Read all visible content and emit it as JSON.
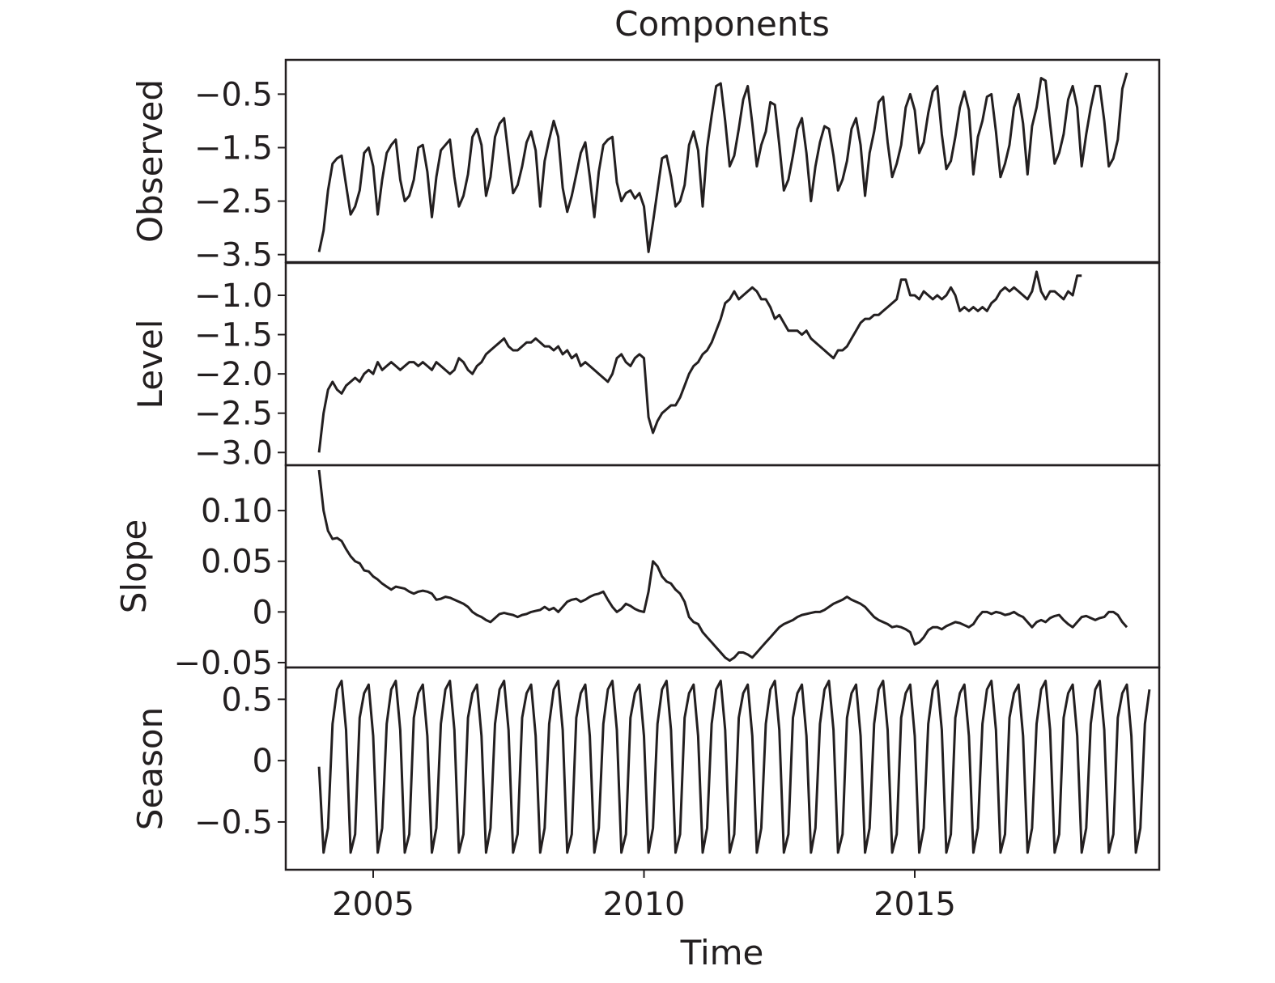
{
  "chart_data": {
    "type": "line",
    "title": "Components",
    "xlabel": "Time",
    "xlim": [
      2004.0,
      2020.0
    ],
    "xticks": [
      2005,
      2010,
      2015
    ],
    "xtick_labels": [
      "2005",
      "2010",
      "2015"
    ],
    "x_start": 2004.0,
    "x_step": 0.08333,
    "panels": [
      {
        "name": "Observed",
        "ylim": [
          -3.55,
          0.05
        ],
        "yticks": [
          -0.5,
          -1.5,
          -2.5,
          -3.5
        ],
        "ytick_labels": [
          "−0.5",
          "−1.5",
          "−2.5",
          "−3.5"
        ],
        "values": [
          -3.45,
          -3.05,
          -2.3,
          -1.8,
          -1.7,
          -1.65,
          -2.2,
          -2.75,
          -2.6,
          -2.3,
          -1.6,
          -1.5,
          -1.85,
          -2.75,
          -2.1,
          -1.6,
          -1.45,
          -1.35,
          -2.1,
          -2.5,
          -2.4,
          -2.1,
          -1.5,
          -1.45,
          -1.95,
          -2.8,
          -2.05,
          -1.55,
          -1.45,
          -1.35,
          -2.05,
          -2.6,
          -2.4,
          -2.0,
          -1.3,
          -1.15,
          -1.45,
          -2.4,
          -2.05,
          -1.3,
          -1.05,
          -0.95,
          -1.65,
          -2.35,
          -2.2,
          -1.85,
          -1.4,
          -1.2,
          -1.55,
          -2.6,
          -1.75,
          -1.35,
          -1.0,
          -1.3,
          -2.25,
          -2.7,
          -2.4,
          -2.0,
          -1.6,
          -1.4,
          -2.05,
          -2.8,
          -1.95,
          -1.45,
          -1.35,
          -1.3,
          -2.15,
          -2.5,
          -2.35,
          -2.3,
          -2.45,
          -2.35,
          -2.6,
          -3.45,
          -2.9,
          -2.3,
          -1.7,
          -1.65,
          -2.05,
          -2.6,
          -2.5,
          -2.2,
          -1.45,
          -1.2,
          -1.55,
          -2.6,
          -1.5,
          -0.9,
          -0.35,
          -0.3,
          -1.0,
          -1.85,
          -1.65,
          -1.15,
          -0.6,
          -0.35,
          -1.05,
          -1.85,
          -1.45,
          -1.2,
          -0.65,
          -0.7,
          -1.45,
          -2.3,
          -2.1,
          -1.65,
          -1.15,
          -0.95,
          -1.6,
          -2.5,
          -1.85,
          -1.4,
          -1.1,
          -1.15,
          -1.65,
          -2.3,
          -2.1,
          -1.75,
          -1.15,
          -0.95,
          -1.45,
          -2.4,
          -1.6,
          -1.2,
          -0.65,
          -0.55,
          -1.4,
          -2.05,
          -1.8,
          -1.45,
          -0.75,
          -0.5,
          -0.8,
          -1.6,
          -1.4,
          -0.85,
          -0.45,
          -0.35,
          -1.25,
          -1.9,
          -1.75,
          -1.3,
          -0.75,
          -0.45,
          -0.8,
          -2.0,
          -1.3,
          -1.0,
          -0.55,
          -0.5,
          -1.2,
          -2.05,
          -1.8,
          -1.45,
          -0.75,
          -0.5,
          -1.05,
          -2.0,
          -1.1,
          -0.75,
          -0.2,
          -0.25,
          -1.05,
          -1.8,
          -1.6,
          -1.25,
          -0.6,
          -0.35,
          -0.75,
          -1.85,
          -1.25,
          -0.75,
          -0.35,
          -0.35,
          -1.0,
          -1.85,
          -1.7,
          -1.35,
          -0.4,
          -0.1
        ],
        "label_y": -1.35
      },
      {
        "name": "Level",
        "ylim": [
          -3.1,
          -0.65
        ],
        "yticks": [
          -1.0,
          -1.5,
          -2.0,
          -2.5,
          -3.0
        ],
        "ytick_labels": [
          "−1.0",
          "−1.5",
          "−2.0",
          "−2.5",
          "−3.0"
        ],
        "values": [
          -3.0,
          -2.5,
          -2.2,
          -2.1,
          -2.2,
          -2.25,
          -2.15,
          -2.1,
          -2.05,
          -2.1,
          -2.0,
          -1.95,
          -2.0,
          -1.85,
          -1.95,
          -1.9,
          -1.85,
          -1.9,
          -1.95,
          -1.9,
          -1.85,
          -1.85,
          -1.9,
          -1.85,
          -1.9,
          -1.95,
          -1.85,
          -1.9,
          -1.95,
          -2.0,
          -1.95,
          -1.8,
          -1.85,
          -1.95,
          -2.0,
          -1.9,
          -1.85,
          -1.75,
          -1.7,
          -1.65,
          -1.6,
          -1.55,
          -1.65,
          -1.7,
          -1.7,
          -1.65,
          -1.6,
          -1.6,
          -1.55,
          -1.6,
          -1.65,
          -1.65,
          -1.7,
          -1.65,
          -1.75,
          -1.7,
          -1.8,
          -1.75,
          -1.9,
          -1.85,
          -1.9,
          -1.95,
          -2.0,
          -2.05,
          -2.1,
          -2.0,
          -1.8,
          -1.75,
          -1.85,
          -1.9,
          -1.8,
          -1.75,
          -1.8,
          -2.55,
          -2.75,
          -2.6,
          -2.5,
          -2.45,
          -2.4,
          -2.4,
          -2.3,
          -2.15,
          -2.0,
          -1.9,
          -1.85,
          -1.75,
          -1.7,
          -1.6,
          -1.45,
          -1.3,
          -1.1,
          -1.05,
          -0.95,
          -1.05,
          -1.0,
          -0.95,
          -0.9,
          -0.95,
          -1.05,
          -1.05,
          -1.15,
          -1.3,
          -1.25,
          -1.35,
          -1.45,
          -1.45,
          -1.45,
          -1.5,
          -1.45,
          -1.55,
          -1.6,
          -1.65,
          -1.7,
          -1.75,
          -1.8,
          -1.7,
          -1.7,
          -1.65,
          -1.55,
          -1.45,
          -1.35,
          -1.3,
          -1.3,
          -1.25,
          -1.25,
          -1.2,
          -1.15,
          -1.1,
          -1.05,
          -0.8,
          -0.8,
          -1.0,
          -1.0,
          -1.05,
          -0.95,
          -1.0,
          -1.05,
          -1.0,
          -1.05,
          -1.0,
          -0.9,
          -1.0,
          -1.2,
          -1.15,
          -1.2,
          -1.15,
          -1.2,
          -1.15,
          -1.2,
          -1.1,
          -1.05,
          -0.95,
          -0.9,
          -0.95,
          -0.9,
          -0.95,
          -1.0,
          -1.05,
          -0.95,
          -0.7,
          -0.95,
          -1.05,
          -0.95,
          -0.95,
          -1.0,
          -1.05,
          -0.95,
          -1.0,
          -0.75,
          -0.75
        ]
      },
      {
        "name": "Slope",
        "ylim": [
          -0.05,
          0.14
        ],
        "yticks": [
          0.1,
          0.05,
          0,
          -0.05
        ],
        "ytick_labels": [
          "0.10",
          "0.05",
          "0",
          "−0.05"
        ],
        "values": [
          0.14,
          0.1,
          0.08,
          0.072,
          0.073,
          0.07,
          0.062,
          0.055,
          0.05,
          0.048,
          0.041,
          0.04,
          0.035,
          0.032,
          0.028,
          0.025,
          0.022,
          0.025,
          0.024,
          0.023,
          0.02,
          0.018,
          0.02,
          0.021,
          0.02,
          0.018,
          0.012,
          0.013,
          0.015,
          0.014,
          0.012,
          0.01,
          0.008,
          0.005,
          0.0,
          -0.003,
          -0.005,
          -0.008,
          -0.01,
          -0.006,
          -0.002,
          -0.001,
          -0.002,
          -0.003,
          -0.005,
          -0.003,
          -0.002,
          0.0,
          0.001,
          0.002,
          0.005,
          0.002,
          0.004,
          0.0,
          0.005,
          0.01,
          0.012,
          0.013,
          0.01,
          0.012,
          0.015,
          0.017,
          0.018,
          0.02,
          0.012,
          0.005,
          0.0,
          0.003,
          0.008,
          0.006,
          0.003,
          0.001,
          0.0,
          0.02,
          0.05,
          0.045,
          0.035,
          0.03,
          0.028,
          0.022,
          0.018,
          0.01,
          -0.005,
          -0.01,
          -0.012,
          -0.02,
          -0.025,
          -0.03,
          -0.035,
          -0.04,
          -0.045,
          -0.048,
          -0.045,
          -0.04,
          -0.04,
          -0.042,
          -0.045,
          -0.04,
          -0.035,
          -0.03,
          -0.025,
          -0.02,
          -0.015,
          -0.012,
          -0.01,
          -0.008,
          -0.005,
          -0.003,
          -0.002,
          -0.001,
          0.0,
          0.0,
          0.002,
          0.005,
          0.008,
          0.01,
          0.012,
          0.015,
          0.012,
          0.01,
          0.008,
          0.005,
          0.0,
          -0.005,
          -0.008,
          -0.01,
          -0.012,
          -0.015,
          -0.014,
          -0.015,
          -0.017,
          -0.02,
          -0.032,
          -0.03,
          -0.025,
          -0.018,
          -0.015,
          -0.015,
          -0.017,
          -0.014,
          -0.012,
          -0.01,
          -0.011,
          -0.013,
          -0.015,
          -0.012,
          -0.005,
          0.0,
          0.0,
          -0.002,
          0.0,
          -0.001,
          -0.003,
          -0.002,
          0.0,
          -0.003,
          -0.005,
          -0.01,
          -0.015,
          -0.01,
          -0.008,
          -0.01,
          -0.006,
          -0.004,
          -0.003,
          -0.008,
          -0.012,
          -0.015,
          -0.01,
          -0.005,
          -0.004,
          -0.006,
          -0.008,
          -0.006,
          -0.005,
          0.0,
          0.0,
          -0.003,
          -0.01,
          -0.015
        ]
      },
      {
        "name": "Season",
        "ylim": [
          -0.85,
          0.72
        ],
        "yticks": [
          0.5,
          0,
          -0.5
        ],
        "ytick_labels": [
          "0.5",
          "0",
          "−0.5"
        ],
        "values": [
          -0.05,
          -0.75,
          -0.55,
          0.3,
          0.58,
          0.65,
          0.25,
          -0.75,
          -0.6,
          0.35,
          0.55,
          0.62,
          0.2,
          -0.75,
          -0.55,
          0.3,
          0.58,
          0.65,
          0.25,
          -0.75,
          -0.6,
          0.35,
          0.55,
          0.62,
          0.2,
          -0.75,
          -0.55,
          0.3,
          0.58,
          0.65,
          0.25,
          -0.75,
          -0.6,
          0.35,
          0.55,
          0.62,
          0.2,
          -0.75,
          -0.55,
          0.3,
          0.58,
          0.65,
          0.25,
          -0.75,
          -0.6,
          0.35,
          0.55,
          0.62,
          0.2,
          -0.75,
          -0.55,
          0.3,
          0.58,
          0.65,
          0.25,
          -0.75,
          -0.6,
          0.35,
          0.55,
          0.62,
          0.2,
          -0.75,
          -0.55,
          0.3,
          0.58,
          0.65,
          0.25,
          -0.75,
          -0.6,
          0.35,
          0.55,
          0.62,
          0.2,
          -0.75,
          -0.55,
          0.3,
          0.58,
          0.65,
          0.25,
          -0.75,
          -0.6,
          0.35,
          0.55,
          0.62,
          0.2,
          -0.75,
          -0.55,
          0.3,
          0.58,
          0.65,
          0.25,
          -0.75,
          -0.6,
          0.35,
          0.55,
          0.62,
          0.2,
          -0.75,
          -0.55,
          0.3,
          0.58,
          0.65,
          0.25,
          -0.75,
          -0.6,
          0.35,
          0.55,
          0.62,
          0.2,
          -0.75,
          -0.55,
          0.3,
          0.58,
          0.65,
          0.25,
          -0.75,
          -0.6,
          0.35,
          0.55,
          0.62,
          0.2,
          -0.75,
          -0.55,
          0.3,
          0.58,
          0.65,
          0.25,
          -0.75,
          -0.6,
          0.35,
          0.55,
          0.62,
          0.2,
          -0.75,
          -0.55,
          0.3,
          0.58,
          0.65,
          0.25,
          -0.75,
          -0.6,
          0.35,
          0.55,
          0.62,
          0.2,
          -0.75,
          -0.55,
          0.3,
          0.58,
          0.65,
          0.25,
          -0.75,
          -0.6,
          0.35,
          0.55,
          0.62,
          0.2,
          -0.75,
          -0.55,
          0.3,
          0.58,
          0.65,
          0.25,
          -0.75,
          -0.6,
          0.35,
          0.55,
          0.62,
          0.2,
          -0.75,
          -0.55,
          0.3,
          0.58,
          0.65,
          0.25,
          -0.75,
          -0.6,
          0.35,
          0.55,
          0.62,
          0.2,
          -0.75,
          -0.55,
          0.3,
          0.58
        ]
      }
    ]
  }
}
